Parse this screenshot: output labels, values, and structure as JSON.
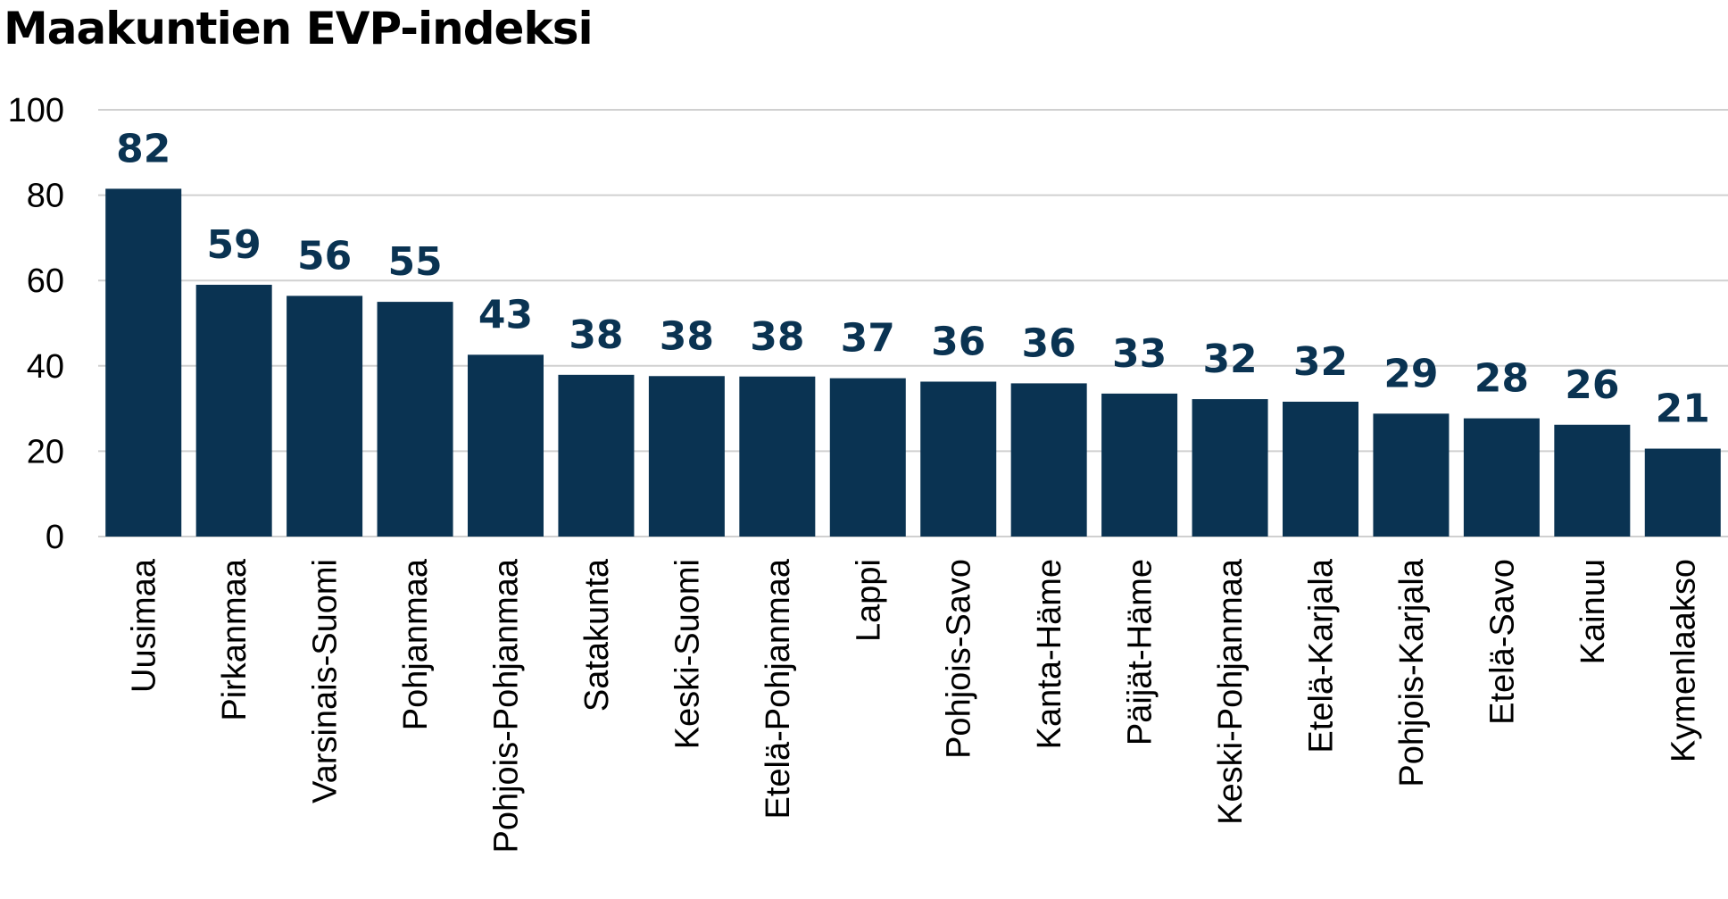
{
  "chart_data": {
    "type": "bar",
    "title": "Maakuntien EVP-indeksi",
    "xlabel": "",
    "ylabel": "",
    "ylim": [
      0,
      100
    ],
    "yticks": [
      0,
      20,
      40,
      60,
      80,
      100
    ],
    "grid": true,
    "legend": "none",
    "colors": {
      "bar": "#0a3352",
      "label": "#0a3352",
      "grid": "#d0d0d0"
    },
    "categories": [
      "Uusimaa",
      "Pirkanmaa",
      "Varsinais-Suomi",
      "Pohjanmaa",
      "Pohjois-Pohjanmaa",
      "Satakunta",
      "Keski-Suomi",
      "Etelä-Pohjanmaa",
      "Lappi",
      "Pohjois-Savo",
      "Kanta-Häme",
      "Päijät-Häme",
      "Keski-Pohjanmaa",
      "Etelä-Karjala",
      "Pohjois-Karjala",
      "Etelä-Savo",
      "Kainuu",
      "Kymenlaakso"
    ],
    "values": [
      81.5,
      59,
      56.4,
      55,
      42.6,
      37.9,
      37.6,
      37.5,
      37.1,
      36.3,
      35.9,
      33.5,
      32.2,
      31.6,
      28.8,
      27.7,
      26.2,
      20.6
    ],
    "data_labels": [
      "82",
      "59",
      "56",
      "55",
      "43",
      "38",
      "38",
      "38",
      "37",
      "36",
      "36",
      "33",
      "32",
      "32",
      "29",
      "28",
      "26",
      "21"
    ]
  }
}
